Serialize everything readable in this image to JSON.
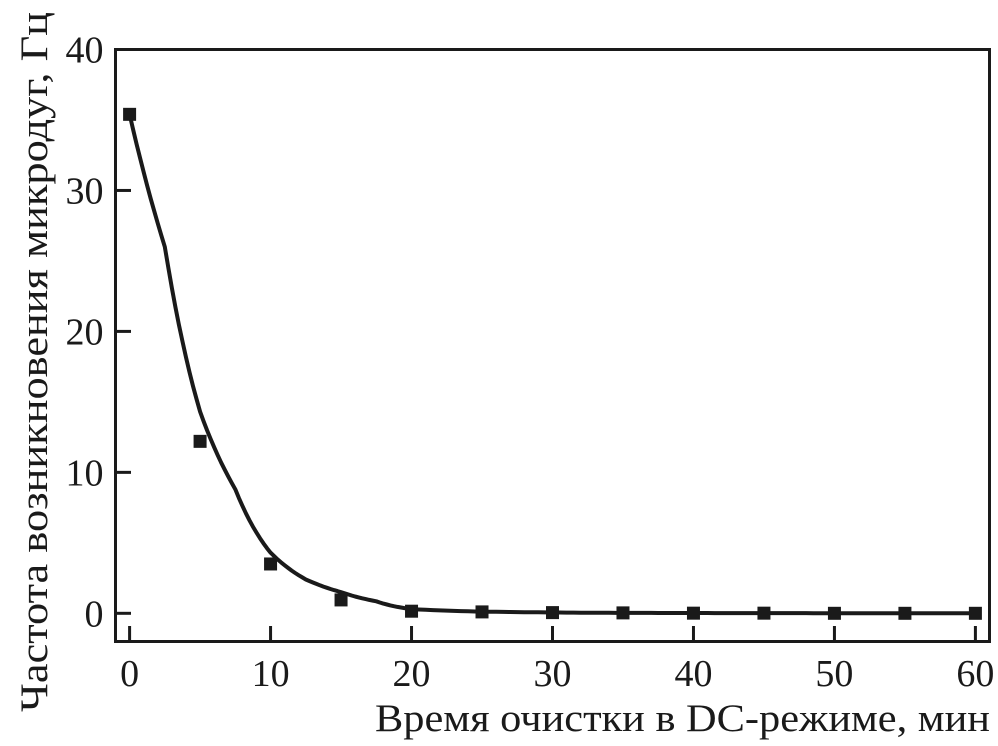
{
  "figure": {
    "background": "#ffffff",
    "ink": "#1a1a1a"
  },
  "chart_data": {
    "type": "scatter",
    "title": "",
    "xlabel": "Время очистки в DC-режиме, мин",
    "ylabel": "Частота возникновения микродуг, Гц",
    "xlim": [
      -1,
      61
    ],
    "ylim": [
      -2,
      40
    ],
    "x_ticks": [
      0,
      10,
      20,
      30,
      40,
      50,
      60
    ],
    "y_ticks": [
      0,
      10,
      20,
      30,
      40
    ],
    "grid": false,
    "legend": false,
    "series": [
      {
        "name": "microarc-frequency-points",
        "marker": "filled-square",
        "x": [
          0,
          5,
          10,
          15,
          20,
          25,
          30,
          35,
          40,
          45,
          50,
          55,
          60
        ],
        "y": [
          35.4,
          12.2,
          3.5,
          0.95,
          0.15,
          0.1,
          0.05,
          0.03,
          0.01,
          0.01,
          0.0,
          0.0,
          0.0
        ]
      },
      {
        "name": "exponential-fit-curve",
        "model": "smoothed exponential decay fit",
        "x": [
          0,
          2.5,
          5,
          7.5,
          10,
          12.5,
          15,
          17.5,
          20,
          25,
          30,
          35,
          40,
          45,
          50,
          55,
          60
        ],
        "y": [
          35.4,
          26.0,
          14.3,
          8.8,
          4.3,
          2.4,
          1.5,
          0.85,
          0.3,
          0.12,
          0.06,
          0.03,
          0.02,
          0.015,
          0.01,
          0.01,
          0.01
        ]
      }
    ]
  }
}
